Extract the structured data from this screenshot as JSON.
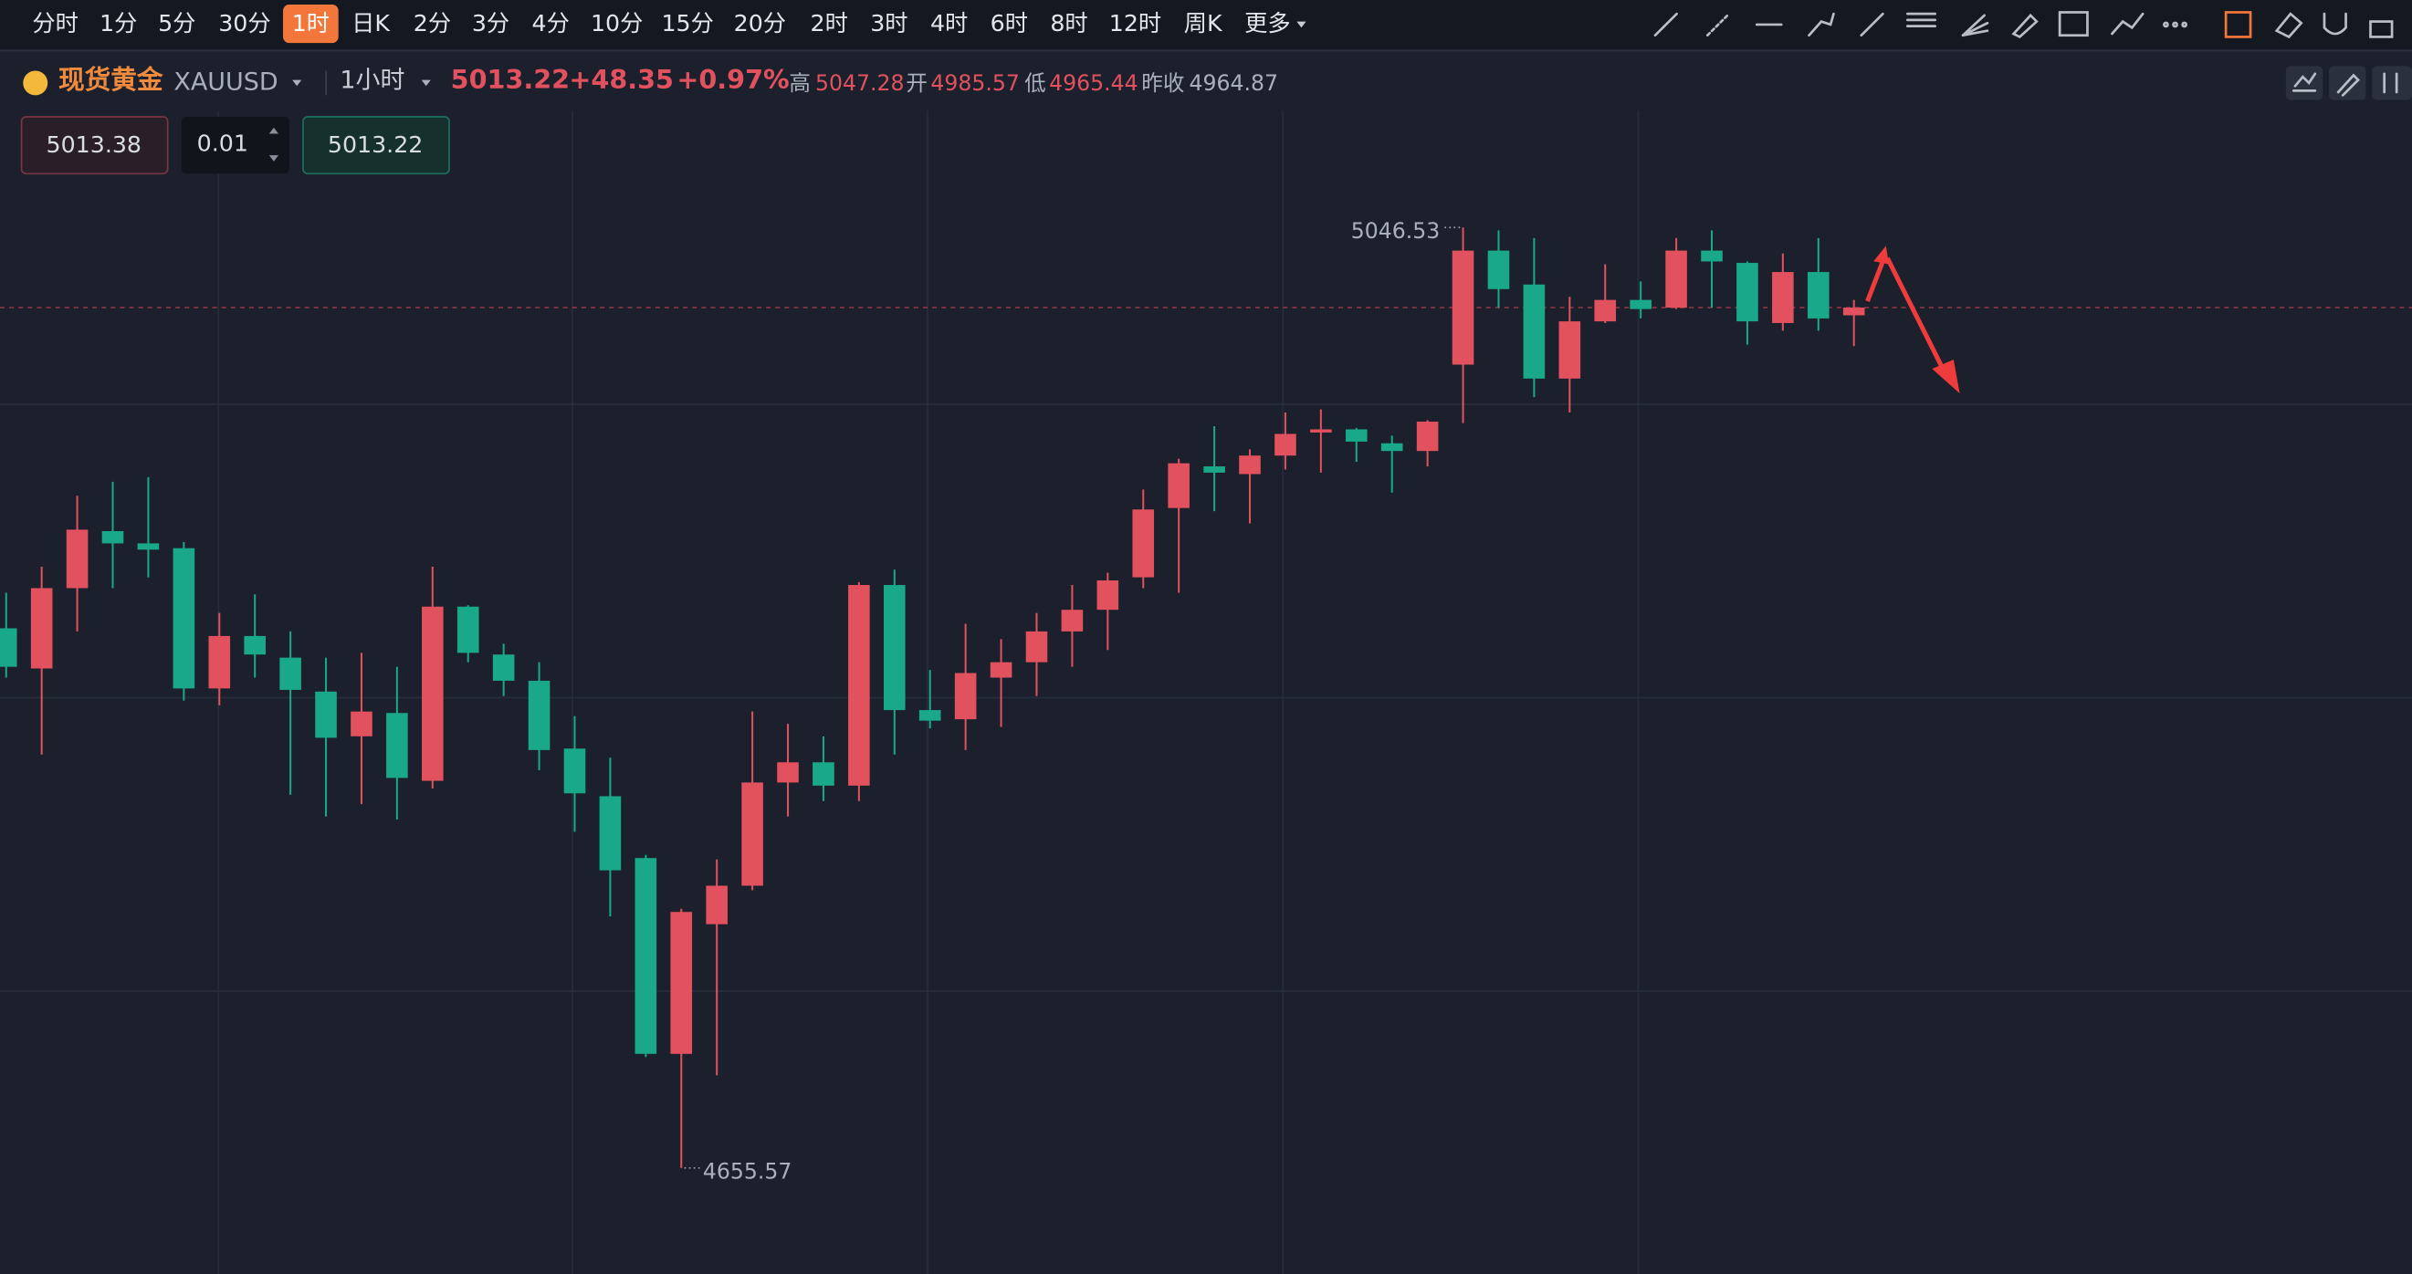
{
  "toolbar": {
    "intervals": [
      "分时",
      "1分",
      "5分",
      "30分",
      "1时",
      "日K",
      "2分",
      "3分",
      "4分",
      "10分",
      "15分",
      "20分",
      "2时",
      "3时",
      "4时",
      "6时",
      "8时",
      "12时",
      "周K",
      "更多"
    ],
    "active": 4
  },
  "header": {
    "name": "现货黄金",
    "symbol": "XAUUSD",
    "period": "1小时",
    "change": "+48.35",
    "change_pct": "+0.97%",
    "high_label": "高",
    "high": "5047.28",
    "open_label": "开",
    "open": "4985.57",
    "low_label": "低",
    "low": "4965.44",
    "prev_label": "昨收",
    "prev": "4964.87"
  },
  "order": {
    "sell": "5013.38",
    "qty": "0.01",
    "buy": "5013.22"
  },
  "chart_data": {
    "type": "candlestick",
    "up_color": "#e2515e",
    "down_color": "#1aa88b",
    "open": [
      4879.9,
      4863.2,
      4896.6,
      4920.3,
      4915.2,
      4913.2,
      4854.9,
      4876.7,
      4867.7,
      4853.6,
      4835.0,
      4844.7,
      4816.5,
      4888.9,
      4869.0,
      4858.1,
      4829.9,
      4810.1,
      4784.4,
      4703.0,
      4756.9,
      4772.9,
      4815.8,
      4824.2,
      4814.5,
      4897.9,
      4845.9,
      4842.1,
      4859.4,
      4865.8,
      4878.6,
      4887.6,
      4901.1,
      4929.9,
      4947.2,
      4944.0,
      4951.7,
      4961.3,
      4962.6,
      4956.8,
      4953.6,
      4989.5,
      5036.9,
      5022.8,
      4983.7,
      5007.5,
      5016.4,
      5013.2,
      5036.9,
      5031.8,
      5006.8,
      5028.0,
      5010.0
    ],
    "high": [
      4894.7,
      4905.5,
      4935.0,
      4940.8,
      4942.7,
      4915.8,
      4886.3,
      4894.0,
      4878.6,
      4867.7,
      4869.7,
      4863.9,
      4905.5,
      4889.5,
      4873.5,
      4865.8,
      4843.4,
      4826.1,
      4785.7,
      4763.3,
      4783.8,
      4845.3,
      4840.2,
      4835.0,
      4899.1,
      4904.3,
      4862.6,
      4881.8,
      4875.4,
      4886.3,
      4897.9,
      4903.0,
      4937.6,
      4950.4,
      4963.9,
      4954.3,
      4969.6,
      4970.9,
      4963.2,
      4960.0,
      4966.4,
      5046.53,
      5045.3,
      5042.1,
      5017.7,
      5031.2,
      5024.1,
      5042.1,
      5045.3,
      5032.4,
      5035.7,
      5042.1,
      5016.4
    ],
    "low": [
      4859.4,
      4827.4,
      4878.6,
      4896.6,
      4901.1,
      4849.8,
      4847.9,
      4859.4,
      4810.7,
      4801.7,
      4806.8,
      4800.4,
      4813.3,
      4865.8,
      4851.7,
      4820.9,
      4795.3,
      4760.1,
      4701.7,
      4655.57,
      4694.1,
      4771.0,
      4801.7,
      4808.1,
      4808.1,
      4827.4,
      4838.3,
      4829.3,
      4838.9,
      4851.7,
      4863.9,
      4870.9,
      4896.6,
      4894.7,
      4928.6,
      4923.5,
      4945.9,
      4944.6,
      4949.1,
      4936.3,
      4947.2,
      4965.2,
      5013.2,
      4976.0,
      4969.6,
      5006.8,
      5008.7,
      5012.6,
      5013.2,
      4997.8,
      5003.6,
      5003.6,
      4997.2
    ],
    "close": [
      4863.9,
      4896.6,
      4920.9,
      4915.2,
      4912.6,
      4854.9,
      4876.7,
      4869.0,
      4854.3,
      4834.4,
      4845.3,
      4817.7,
      4888.9,
      4869.7,
      4858.1,
      4829.3,
      4811.3,
      4779.3,
      4703.0,
      4762.0,
      4772.9,
      4815.8,
      4824.2,
      4814.5,
      4897.9,
      4845.9,
      4841.5,
      4861.3,
      4865.8,
      4878.6,
      4887.6,
      4899.8,
      4929.3,
      4948.5,
      4944.6,
      4951.7,
      4960.7,
      4962.6,
      4957.5,
      4953.6,
      4965.8,
      5036.9,
      5020.9,
      4983.7,
      5007.5,
      5016.4,
      5012.6,
      5036.9,
      5032.4,
      5007.5,
      5028.0,
      5008.7,
      5013.22
    ],
    "last_price": 5013.22,
    "max_marker": 5046.53,
    "min_marker": 4655.57
  }
}
